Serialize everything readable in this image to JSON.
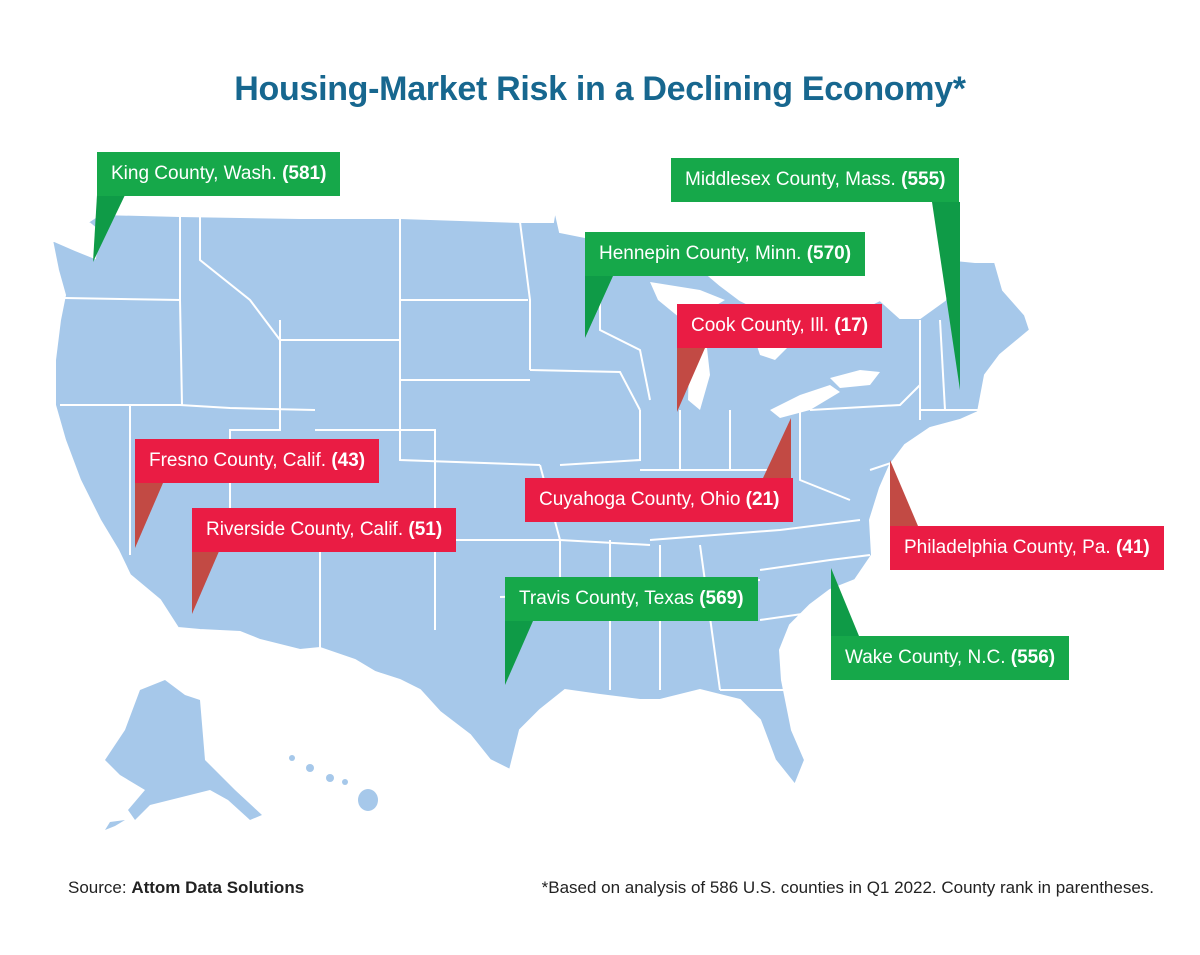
{
  "title": "Housing-Market Risk in a Declining Economy*",
  "colors": {
    "title": "#17678f",
    "map_fill": "#a6c8ea",
    "low_risk": "#16a84a",
    "high_risk": "#ea1c44"
  },
  "callouts": [
    {
      "county": "King County, Wash.",
      "rank": "(581)",
      "risk": "low"
    },
    {
      "county": "Middlesex County, Mass.",
      "rank": "(555)",
      "risk": "low"
    },
    {
      "county": "Hennepin County, Minn.",
      "rank": "(570)",
      "risk": "low"
    },
    {
      "county": "Cook County, Ill.",
      "rank": "(17)",
      "risk": "high"
    },
    {
      "county": "Fresno County, Calif.",
      "rank": "(43)",
      "risk": "high"
    },
    {
      "county": "Cuyahoga County, Ohio",
      "rank": "(21)",
      "risk": "high"
    },
    {
      "county": "Riverside County, Calif.",
      "rank": "(51)",
      "risk": "high"
    },
    {
      "county": "Philadelphia County, Pa.",
      "rank": "(41)",
      "risk": "high"
    },
    {
      "county": "Travis County, Texas",
      "rank": "(569)",
      "risk": "low"
    },
    {
      "county": "Wake County, N.C.",
      "rank": "(556)",
      "risk": "low"
    }
  ],
  "source_label": "Source:",
  "source_name": "Attom Data Solutions",
  "footnote": "*Based on analysis of 586 U.S. counties in Q1 2022. County rank in parentheses."
}
